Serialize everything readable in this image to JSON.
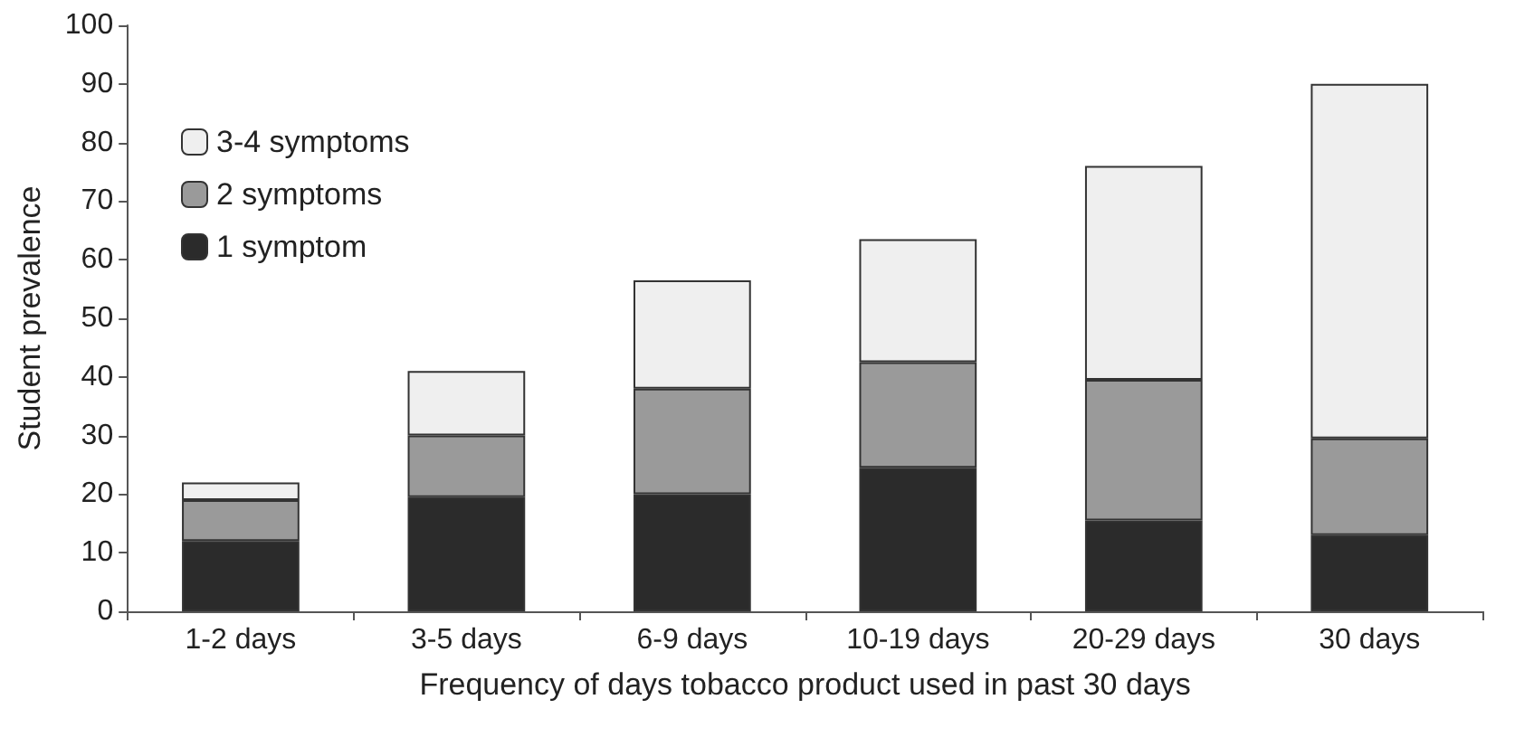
{
  "chart_data": {
    "type": "bar",
    "stacked": true,
    "xlabel": "Frequency of days tobacco product used in past 30 days",
    "ylabel": "Student prevalence",
    "categories": [
      "1-2 days",
      "3-5 days",
      "6-9 days",
      "10-19 days",
      "20-29 days",
      "30 days"
    ],
    "series": [
      {
        "name": "1 symptom",
        "color": "#2b2b2b",
        "values": [
          12,
          19.5,
          20,
          24.5,
          15.5,
          13
        ]
      },
      {
        "name": "2 symptoms",
        "color": "#9a9a9a",
        "values": [
          7,
          10.5,
          18,
          18,
          24,
          16.5
        ]
      },
      {
        "name": "3-4 symptoms",
        "color": "#efefef",
        "values": [
          3,
          11,
          18.5,
          21,
          36.5,
          60.5
        ]
      }
    ],
    "ylim": [
      0,
      100
    ],
    "yticks": [
      0,
      10,
      20,
      30,
      40,
      50,
      60,
      70,
      80,
      90,
      100
    ],
    "grid": false,
    "legend": "top left"
  }
}
